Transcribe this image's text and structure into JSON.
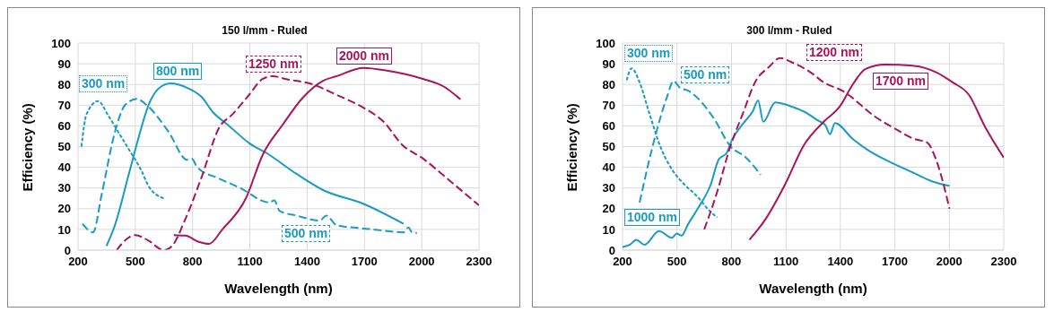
{
  "chart_data": [
    {
      "type": "line",
      "title": "150 l/mm - Ruled",
      "xlabel": "Wavelength (nm)",
      "ylabel": "Efficiency (%)",
      "xlim": [
        200,
        2300
      ],
      "xticks": [
        200,
        500,
        800,
        1100,
        1400,
        1700,
        2000,
        2300
      ],
      "ylim": [
        0,
        100
      ],
      "yticks": [
        0,
        10,
        20,
        30,
        40,
        50,
        60,
        70,
        80,
        90,
        100
      ],
      "grid": true,
      "legend": false,
      "series": [
        {
          "name": "300 nm",
          "color": "#1a9bc4",
          "line_style": "dotted",
          "x": [
            218,
            244,
            305,
            358,
            411,
            464,
            534,
            569,
            648
          ],
          "values": [
            50,
            65.5,
            72,
            65,
            57,
            49,
            38,
            31,
            25
          ]
        },
        {
          "name": "500 nm",
          "color": "#1a9bc4",
          "line_style": "dashed",
          "x": [
            223,
            279,
            323,
            393,
            446,
            508,
            560,
            675,
            771,
            797,
            824,
            938,
            1035,
            1053,
            1202,
            1228,
            1255,
            1343,
            1466,
            1501,
            1554,
            1729,
            1905,
            1931,
            1949,
            1975
          ],
          "values": [
            12.7,
            8.6,
            26.5,
            57,
            70,
            73,
            70,
            57,
            43.6,
            44,
            40,
            34.6,
            30.6,
            29.8,
            23,
            24,
            19,
            16.7,
            14.3,
            16.7,
            12,
            10.2,
            8.6,
            10.9,
            8.6,
            8.3
          ]
        },
        {
          "name": "800 nm",
          "color": "#1a9bc4",
          "line_style": "solid",
          "x": [
            349,
            393,
            464,
            516,
            569,
            622,
            683,
            780,
            850,
            903,
            991,
            1096,
            1202,
            1325,
            1483,
            1694,
            1905
          ],
          "values": [
            2,
            12,
            36,
            54,
            70,
            78,
            80.5,
            78,
            73.7,
            67,
            60,
            51.7,
            46,
            38,
            29,
            22.4,
            12.7
          ]
        },
        {
          "name": "1250 nm",
          "color": "#a8155a",
          "line_style": "dashed",
          "x": [
            402,
            455,
            499,
            569,
            648,
            692,
            762,
            850,
            938,
            1008,
            1096,
            1166,
            1219,
            1290,
            1430,
            1554,
            1694,
            1800,
            1896,
            2010,
            2133,
            2300
          ],
          "values": [
            0,
            5.4,
            7.3,
            4.6,
            0,
            2,
            15,
            36,
            59,
            65.5,
            75,
            82.6,
            84,
            82.6,
            80,
            75,
            68.8,
            62,
            51,
            44,
            34.6,
            21.6
          ]
        },
        {
          "name": "2000 nm",
          "color": "#a8155a",
          "line_style": "solid",
          "x": [
            701,
            762,
            833,
            886,
            956,
            1079,
            1167,
            1272,
            1378,
            1483,
            1554,
            1694,
            1817,
            2010,
            2115,
            2203
          ],
          "values": [
            7.3,
            7,
            4,
            3,
            10,
            25,
            46,
            60.6,
            73.7,
            81.8,
            84,
            88,
            86.7,
            82.6,
            79,
            72.8
          ]
        }
      ]
    },
    {
      "type": "line",
      "title": "300 l/mm - Ruled",
      "xlabel": "Wavelength (nm)",
      "ylabel": "Efficiency (%)",
      "xlim": [
        200,
        2300
      ],
      "xticks": [
        200,
        500,
        800,
        1100,
        1400,
        1700,
        2000,
        2300
      ],
      "ylim": [
        0,
        100
      ],
      "yticks": [
        0,
        10,
        20,
        30,
        40,
        50,
        60,
        70,
        80,
        90,
        100
      ],
      "grid": true,
      "legend": false,
      "series": [
        {
          "name": "300 nm",
          "color": "#1a9bc4",
          "line_style": "dotted",
          "x": [
            223,
            250,
            294,
            348,
            410,
            472,
            543,
            614,
            668,
            721
          ],
          "values": [
            82,
            87.8,
            81,
            66,
            49.6,
            39,
            31.5,
            25.7,
            20,
            15.8
          ]
        },
        {
          "name": "500 nm",
          "color": "#1a9bc4",
          "line_style": "dashed",
          "x": [
            294,
            383,
            445,
            481,
            516,
            561,
            703,
            792,
            881,
            961
          ],
          "values": [
            23,
            56,
            74,
            81.7,
            78.4,
            77,
            63.6,
            50.4,
            44.6,
            36.4
          ]
        },
        {
          "name": "1000 nm",
          "color": "#1a9bc4",
          "line_style": "solid",
          "x": [
            200,
            241,
            276,
            321,
            401,
            472,
            499,
            525,
            561,
            614,
            685,
            730,
            774,
            801,
            863,
            917,
            947,
            975,
            1041,
            1130,
            1219,
            1272,
            1317,
            1343,
            1370,
            1468,
            1557,
            1663,
            1806,
            1912,
            2001
          ],
          "values": [
            1.5,
            2.6,
            5,
            2.6,
            9.2,
            6,
            8,
            7,
            12.5,
            20,
            31.5,
            43.8,
            47,
            52.9,
            61,
            67,
            72.3,
            62,
            71.3,
            69.4,
            66,
            62.8,
            60.3,
            56,
            61.4,
            53.7,
            48,
            43,
            37.2,
            33,
            31
          ]
        },
        {
          "name": "1200 nm",
          "color": "#a8155a",
          "line_style": "dashed",
          "x": [
            650,
            721,
            792,
            863,
            934,
            1005,
            1068,
            1130,
            1237,
            1308,
            1414,
            1592,
            1717,
            1806,
            1877,
            1930,
            2001
          ],
          "values": [
            10,
            28,
            49.6,
            66,
            81.7,
            88.3,
            92.8,
            90.8,
            85.8,
            81,
            76.8,
            64.4,
            57.8,
            53.7,
            52,
            43,
            20
          ]
        },
        {
          "name": "1700 nm",
          "color": "#a8155a",
          "line_style": "solid",
          "x": [
            899,
            988,
            1094,
            1201,
            1308,
            1397,
            1468,
            1539,
            1646,
            1806,
            1930,
            2019,
            2108,
            2197,
            2300
          ],
          "values": [
            5,
            15,
            31.5,
            51,
            62,
            69.4,
            80,
            87.5,
            89.6,
            89,
            85.8,
            81,
            75,
            59.5,
            44.6
          ]
        }
      ]
    }
  ]
}
